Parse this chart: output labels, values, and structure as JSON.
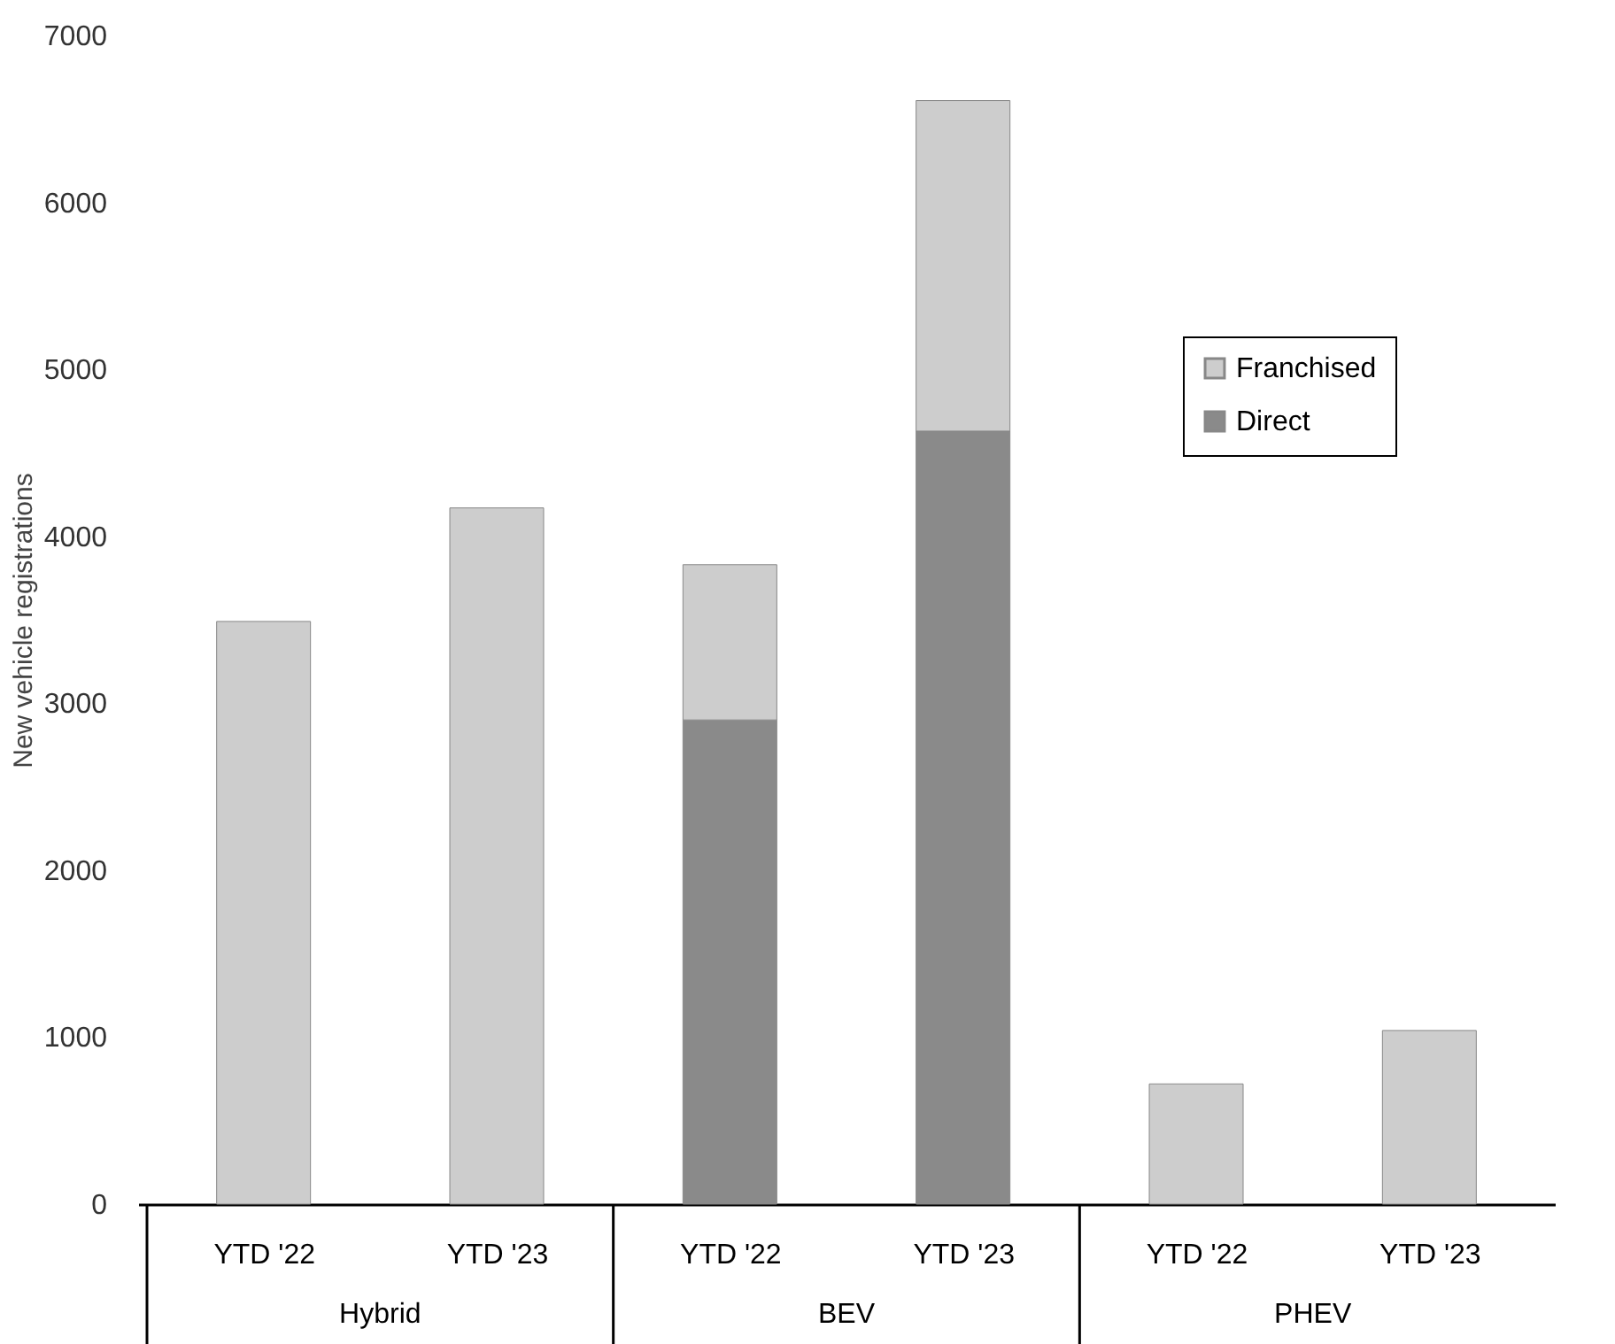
{
  "chart_data": {
    "type": "bar",
    "ylabel": "New vehicle registrations",
    "categories": [
      "YTD '22",
      "YTD '23",
      "YTD '22",
      "YTD '23",
      "YTD '22",
      "YTD '23"
    ],
    "annotations": [
      "Hybrid",
      "BEV",
      "PHEV"
    ],
    "stacked": true,
    "series": [
      {
        "name": "Direct",
        "color": "#8a8a8a",
        "values": [
          null,
          null,
          2900,
          4630,
          null,
          null
        ]
      },
      {
        "name": "Franchised",
        "color": "#cdcdcd",
        "values": [
          3490,
          4170,
          930,
          1980,
          720,
          1040
        ]
      }
    ],
    "ylim": [
      0,
      7000
    ],
    "yticks": [
      0,
      1000,
      2000,
      3000,
      4000,
      5000,
      6000,
      7000
    ],
    "grid": false,
    "legend": "top right"
  }
}
